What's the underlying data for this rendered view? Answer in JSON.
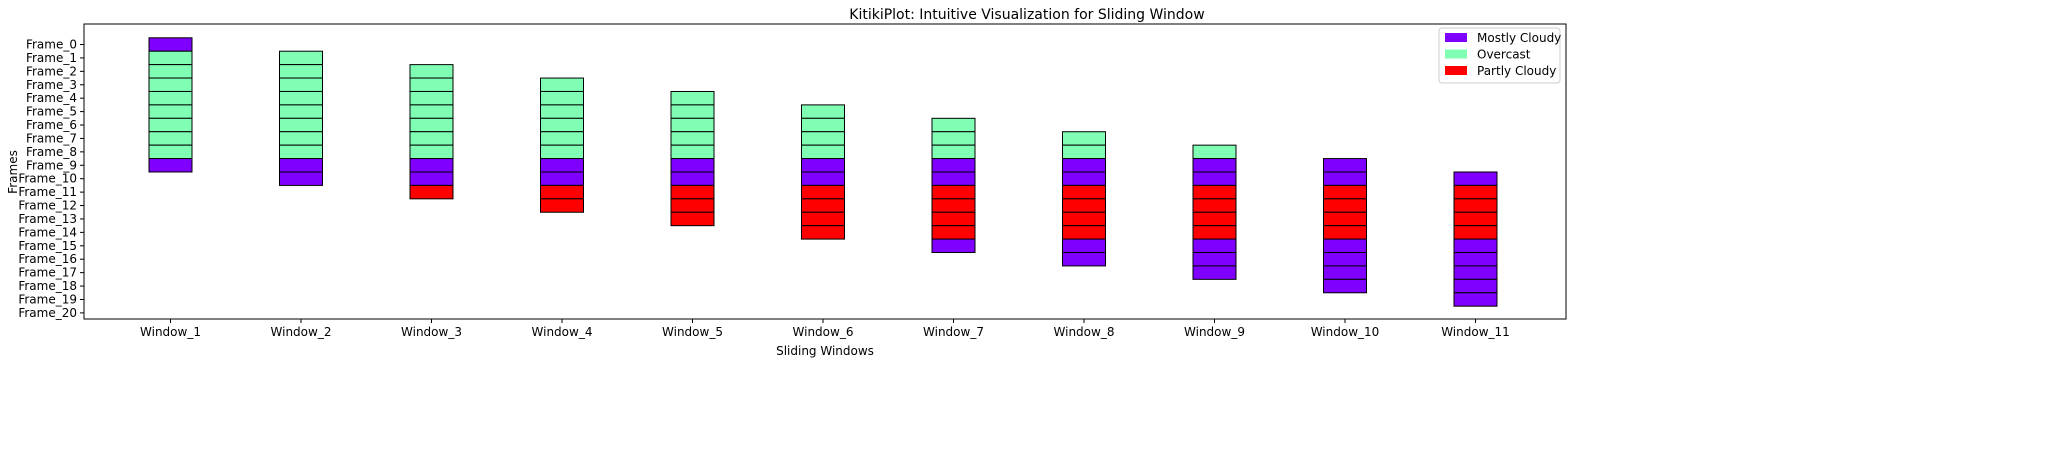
{
  "chart_data": {
    "type": "bar",
    "title": "KitikiPlot: Intuitive Visualization for Sliding Window",
    "xlabel": "Sliding Windows",
    "ylabel": "Frames",
    "categories": [
      "Window_1",
      "Window_2",
      "Window_3",
      "Window_4",
      "Window_5",
      "Window_6",
      "Window_7",
      "Window_8",
      "Window_9",
      "Window_10",
      "Window_11"
    ],
    "frames": [
      "Frame_0",
      "Frame_1",
      "Frame_2",
      "Frame_3",
      "Frame_4",
      "Frame_5",
      "Frame_6",
      "Frame_7",
      "Frame_8",
      "Frame_9",
      "Frame_10",
      "Frame_11",
      "Frame_12",
      "Frame_13",
      "Frame_14",
      "Frame_15",
      "Frame_16",
      "Frame_17",
      "Frame_18",
      "Frame_19",
      "Frame_20"
    ],
    "legend": [
      {
        "label": "Mostly Cloudy",
        "color": "#8000ff"
      },
      {
        "label": "Overcast",
        "color": "#80ffb4"
      },
      {
        "label": "Partly Cloudy",
        "color": "#ff0000"
      }
    ],
    "legend_position": "top-right",
    "cells": [
      {
        "window": "Window_1",
        "start_frame": 0,
        "values": [
          "Mostly Cloudy",
          "Overcast",
          "Overcast",
          "Overcast",
          "Overcast",
          "Overcast",
          "Overcast",
          "Overcast",
          "Overcast",
          "Mostly Cloudy"
        ]
      },
      {
        "window": "Window_2",
        "start_frame": 1,
        "values": [
          "Overcast",
          "Overcast",
          "Overcast",
          "Overcast",
          "Overcast",
          "Overcast",
          "Overcast",
          "Overcast",
          "Mostly Cloudy",
          "Mostly Cloudy"
        ]
      },
      {
        "window": "Window_3",
        "start_frame": 2,
        "values": [
          "Overcast",
          "Overcast",
          "Overcast",
          "Overcast",
          "Overcast",
          "Overcast",
          "Overcast",
          "Mostly Cloudy",
          "Mostly Cloudy",
          "Partly Cloudy"
        ]
      },
      {
        "window": "Window_4",
        "start_frame": 3,
        "values": [
          "Overcast",
          "Overcast",
          "Overcast",
          "Overcast",
          "Overcast",
          "Overcast",
          "Mostly Cloudy",
          "Mostly Cloudy",
          "Partly Cloudy",
          "Partly Cloudy"
        ]
      },
      {
        "window": "Window_5",
        "start_frame": 4,
        "values": [
          "Overcast",
          "Overcast",
          "Overcast",
          "Overcast",
          "Overcast",
          "Mostly Cloudy",
          "Mostly Cloudy",
          "Partly Cloudy",
          "Partly Cloudy",
          "Partly Cloudy"
        ]
      },
      {
        "window": "Window_6",
        "start_frame": 5,
        "values": [
          "Overcast",
          "Overcast",
          "Overcast",
          "Overcast",
          "Mostly Cloudy",
          "Mostly Cloudy",
          "Partly Cloudy",
          "Partly Cloudy",
          "Partly Cloudy",
          "Partly Cloudy"
        ]
      },
      {
        "window": "Window_7",
        "start_frame": 6,
        "values": [
          "Overcast",
          "Overcast",
          "Overcast",
          "Mostly Cloudy",
          "Mostly Cloudy",
          "Partly Cloudy",
          "Partly Cloudy",
          "Partly Cloudy",
          "Partly Cloudy",
          "Mostly Cloudy"
        ]
      },
      {
        "window": "Window_8",
        "start_frame": 7,
        "values": [
          "Overcast",
          "Overcast",
          "Mostly Cloudy",
          "Mostly Cloudy",
          "Partly Cloudy",
          "Partly Cloudy",
          "Partly Cloudy",
          "Partly Cloudy",
          "Mostly Cloudy",
          "Mostly Cloudy"
        ]
      },
      {
        "window": "Window_9",
        "start_frame": 8,
        "values": [
          "Overcast",
          "Mostly Cloudy",
          "Mostly Cloudy",
          "Partly Cloudy",
          "Partly Cloudy",
          "Partly Cloudy",
          "Partly Cloudy",
          "Mostly Cloudy",
          "Mostly Cloudy",
          "Mostly Cloudy"
        ]
      },
      {
        "window": "Window_10",
        "start_frame": 9,
        "values": [
          "Mostly Cloudy",
          "Mostly Cloudy",
          "Partly Cloudy",
          "Partly Cloudy",
          "Partly Cloudy",
          "Partly Cloudy",
          "Mostly Cloudy",
          "Mostly Cloudy",
          "Mostly Cloudy",
          "Mostly Cloudy"
        ]
      },
      {
        "window": "Window_11",
        "start_frame": 10,
        "values": [
          "Mostly Cloudy",
          "Partly Cloudy",
          "Partly Cloudy",
          "Partly Cloudy",
          "Partly Cloudy",
          "Mostly Cloudy",
          "Mostly Cloudy",
          "Mostly Cloudy",
          "Mostly Cloudy",
          "Mostly Cloudy"
        ]
      }
    ]
  }
}
